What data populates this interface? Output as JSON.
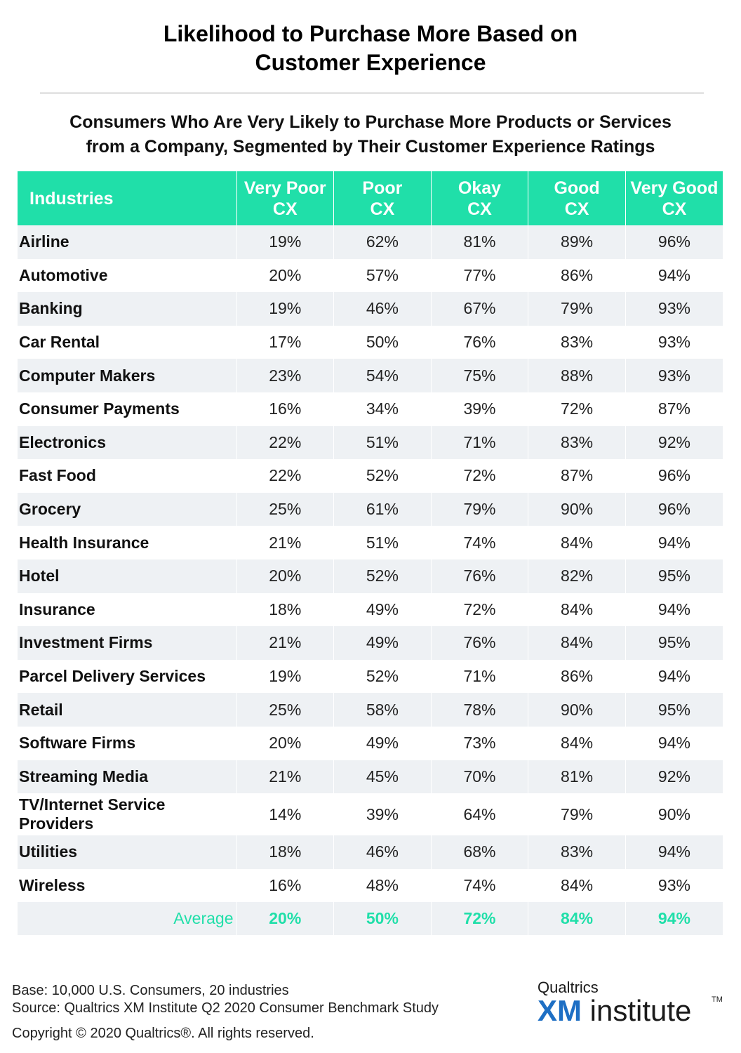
{
  "title_lines": [
    "Likelihood to Purchase More Based on",
    "Customer Experience"
  ],
  "subtitle_lines": [
    "Consumers Who Are Very Likely to Purchase More Products or Services",
    "from a Company, Segmented by Their Customer Experience Ratings"
  ],
  "columns": [
    {
      "lines": [
        "Industries"
      ]
    },
    {
      "lines": [
        "Very Poor",
        "CX"
      ]
    },
    {
      "lines": [
        "Poor",
        "CX"
      ]
    },
    {
      "lines": [
        "Okay",
        "CX"
      ]
    },
    {
      "lines": [
        "Good",
        "CX"
      ]
    },
    {
      "lines": [
        "Very Good",
        "CX"
      ]
    }
  ],
  "colors": {
    "header_bg": "#20dfa9",
    "stripe": "#eef1f4",
    "average_text": "#20dfa9",
    "logo_xm": "#1e6fc4"
  },
  "chart_data": {
    "type": "table",
    "title": "Likelihood to Purchase More Based on Customer Experience",
    "subtitle": "Consumers Who Are Very Likely to Purchase More Products or Services from a Company, Segmented by Their Customer Experience Ratings",
    "columns": [
      "Industries",
      "Very Poor CX",
      "Poor CX",
      "Okay CX",
      "Good CX",
      "Very Good CX"
    ],
    "unit": "%",
    "rows": [
      {
        "industry": "Airline",
        "values": [
          "19%",
          "62%",
          "81%",
          "89%",
          "96%"
        ]
      },
      {
        "industry": "Automotive",
        "values": [
          "20%",
          "57%",
          "77%",
          "86%",
          "94%"
        ]
      },
      {
        "industry": "Banking",
        "values": [
          "19%",
          "46%",
          "67%",
          "79%",
          "93%"
        ]
      },
      {
        "industry": "Car Rental",
        "values": [
          "17%",
          "50%",
          "76%",
          "83%",
          "93%"
        ]
      },
      {
        "industry": "Computer Makers",
        "values": [
          "23%",
          "54%",
          "75%",
          "88%",
          "93%"
        ]
      },
      {
        "industry": "Consumer Payments",
        "values": [
          "16%",
          "34%",
          "39%",
          "72%",
          "87%"
        ]
      },
      {
        "industry": "Electronics",
        "values": [
          "22%",
          "51%",
          "71%",
          "83%",
          "92%"
        ]
      },
      {
        "industry": "Fast Food",
        "values": [
          "22%",
          "52%",
          "72%",
          "87%",
          "96%"
        ]
      },
      {
        "industry": "Grocery",
        "values": [
          "25%",
          "61%",
          "79%",
          "90%",
          "96%"
        ]
      },
      {
        "industry": "Health Insurance",
        "values": [
          "21%",
          "51%",
          "74%",
          "84%",
          "94%"
        ]
      },
      {
        "industry": "Hotel",
        "values": [
          "20%",
          "52%",
          "76%",
          "82%",
          "95%"
        ]
      },
      {
        "industry": "Insurance",
        "values": [
          "18%",
          "49%",
          "72%",
          "84%",
          "94%"
        ]
      },
      {
        "industry": "Investment Firms",
        "values": [
          "21%",
          "49%",
          "76%",
          "84%",
          "95%"
        ]
      },
      {
        "industry": "Parcel Delivery Services",
        "values": [
          "19%",
          "52%",
          "71%",
          "86%",
          "94%"
        ]
      },
      {
        "industry": "Retail",
        "values": [
          "25%",
          "58%",
          "78%",
          "90%",
          "95%"
        ]
      },
      {
        "industry": "Software Firms",
        "values": [
          "20%",
          "49%",
          "73%",
          "84%",
          "94%"
        ]
      },
      {
        "industry": "Streaming Media",
        "values": [
          "21%",
          "45%",
          "70%",
          "81%",
          "92%"
        ]
      },
      {
        "industry": "TV/Internet Service Providers",
        "lines": [
          "TV/Internet Service",
          "Providers"
        ],
        "values": [
          "14%",
          "39%",
          "64%",
          "79%",
          "90%"
        ]
      },
      {
        "industry": "Utilities",
        "values": [
          "18%",
          "46%",
          "68%",
          "83%",
          "94%"
        ]
      },
      {
        "industry": "Wireless",
        "values": [
          "16%",
          "48%",
          "74%",
          "84%",
          "93%"
        ]
      }
    ],
    "average": {
      "label": "Average",
      "values": [
        "20%",
        "50%",
        "72%",
        "84%",
        "94%"
      ]
    }
  },
  "footer": {
    "base": "Base: 10,000 U.S. Consumers, 20 industries",
    "source": "Source: Qualtrics XM Institute Q2 2020 Consumer Benchmark Study",
    "copyright": "Copyright © 2020 Qualtrics®.  All rights reserved."
  },
  "logo": {
    "top_text": "Qualtrics",
    "xm": "XM",
    "institute": "institute",
    "tm": "TM"
  }
}
